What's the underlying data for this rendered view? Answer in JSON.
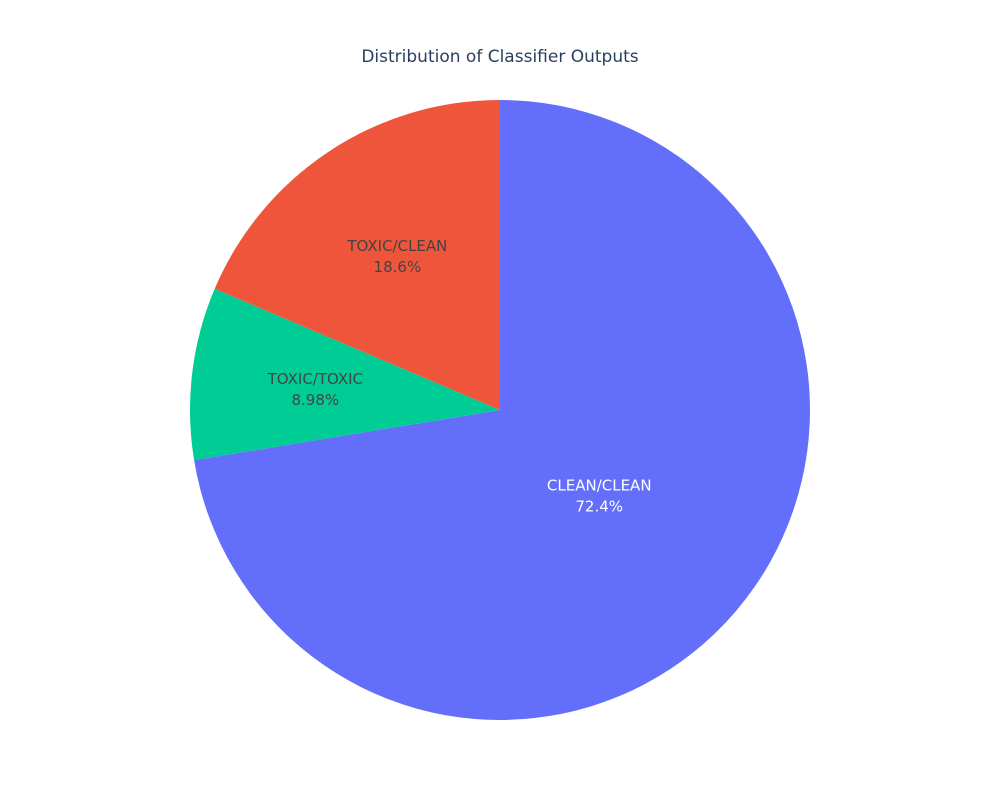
{
  "chart_data": {
    "type": "pie",
    "title": "Distribution of Classifier Outputs",
    "slices": [
      {
        "label": "CLEAN/CLEAN",
        "percent_label": "72.4%",
        "value": 72.4,
        "color": "#636efa",
        "text_color": "#ffffff"
      },
      {
        "label": "TOXIC/TOXIC",
        "percent_label": "8.98%",
        "value": 8.98,
        "color": "#00cc96",
        "text_color": "#444444"
      },
      {
        "label": "TOXIC/CLEAN",
        "percent_label": "18.6%",
        "value": 18.6,
        "color": "#ef553b",
        "text_color": "#444444"
      }
    ],
    "direction": "clockwise",
    "start": "top"
  }
}
